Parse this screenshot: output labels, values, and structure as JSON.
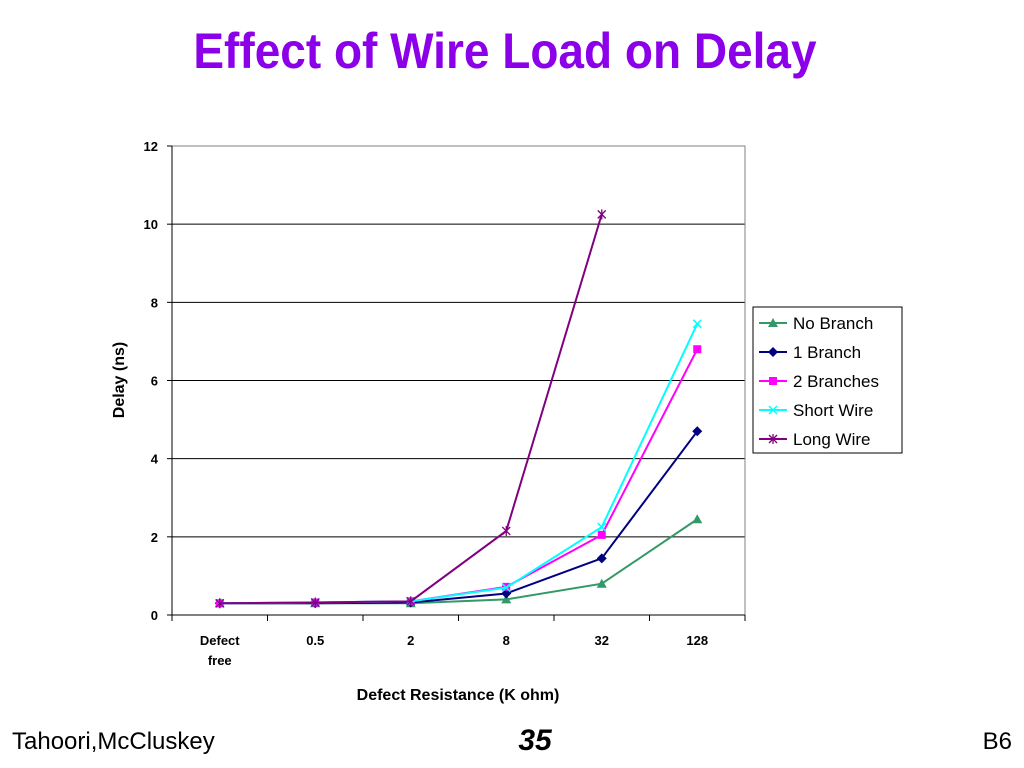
{
  "slide": {
    "title": "Effect of Wire Load on Delay",
    "footer_left": "Tahoori,McCluskey",
    "page_number": "35",
    "footer_right": "B6"
  },
  "chart_data": {
    "type": "line",
    "title": "",
    "xlabel": "Defect Resistance (K ohm)",
    "ylabel": "Delay (ns)",
    "categories": [
      "Defect free",
      "0.5",
      "2",
      "8",
      "32",
      "128"
    ],
    "ylim": [
      0,
      12
    ],
    "yticks": [
      0,
      2,
      4,
      6,
      8,
      10,
      12
    ],
    "grid": "horizontal",
    "legend_position": "right",
    "series": [
      {
        "name": "No Branch",
        "color": "#339966",
        "marker": "triangle",
        "values": [
          0.3,
          0.3,
          0.3,
          0.4,
          0.8,
          2.45
        ]
      },
      {
        "name": "1 Branch",
        "color": "#000080",
        "marker": "diamond",
        "values": [
          0.3,
          0.3,
          0.32,
          0.55,
          1.45,
          4.7
        ]
      },
      {
        "name": "2 Branches",
        "color": "#ff00ff",
        "marker": "square",
        "values": [
          0.3,
          0.32,
          0.35,
          0.72,
          2.05,
          6.8
        ]
      },
      {
        "name": "Short Wire",
        "color": "#00ffff",
        "marker": "x",
        "values": [
          0.3,
          0.32,
          0.35,
          0.7,
          2.25,
          7.45
        ]
      },
      {
        "name": "Long Wire",
        "color": "#800080",
        "marker": "star",
        "values": [
          0.3,
          0.32,
          0.35,
          2.15,
          10.25,
          null
        ]
      }
    ]
  }
}
